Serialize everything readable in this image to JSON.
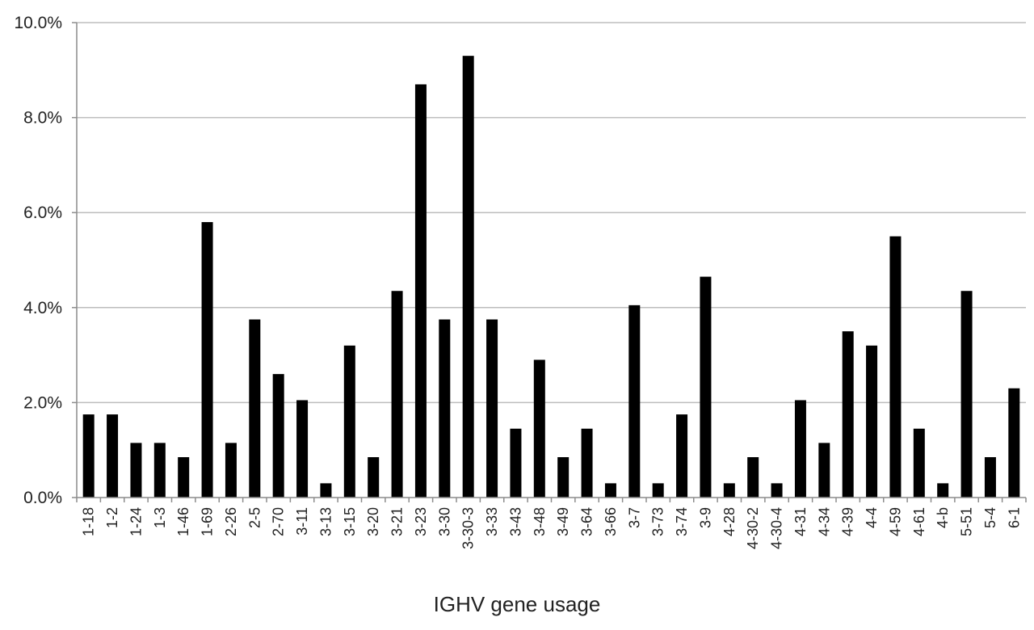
{
  "chart_data": {
    "type": "bar",
    "xlabel": "IGHV gene usage",
    "ylabel": "",
    "ylim": [
      0,
      10
    ],
    "y_tick_labels": [
      "0.0%",
      "2.0%",
      "4.0%",
      "6.0%",
      "8.0%",
      "10.0%"
    ],
    "grid": true,
    "legend": "none",
    "bar_color": "#000000",
    "categories": [
      "1-18",
      "1-2",
      "1-24",
      "1-3",
      "1-46",
      "1-69",
      "2-26",
      "2-5",
      "2-70",
      "3-11",
      "3-13",
      "3-15",
      "3-20",
      "3-21",
      "3-23",
      "3-30",
      "3-30-3",
      "3-33",
      "3-43",
      "3-48",
      "3-49",
      "3-64",
      "3-66",
      "3-7",
      "3-73",
      "3-74",
      "3-9",
      "4-28",
      "4-30-2",
      "4-30-4",
      "4-31",
      "4-34",
      "4-39",
      "4-4",
      "4-59",
      "4-61",
      "4-b",
      "5-51",
      "5-4",
      "6-1"
    ],
    "values": [
      1.75,
      1.75,
      1.15,
      1.15,
      0.85,
      5.8,
      1.15,
      3.75,
      2.6,
      2.05,
      0.3,
      3.2,
      0.85,
      4.35,
      8.7,
      3.75,
      9.3,
      3.75,
      1.45,
      2.9,
      0.85,
      1.45,
      0.3,
      4.05,
      0.3,
      1.75,
      4.65,
      0.3,
      0.85,
      0.3,
      2.05,
      1.15,
      3.5,
      3.2,
      5.5,
      1.45,
      0.3,
      4.35,
      0.85,
      2.3
    ]
  }
}
